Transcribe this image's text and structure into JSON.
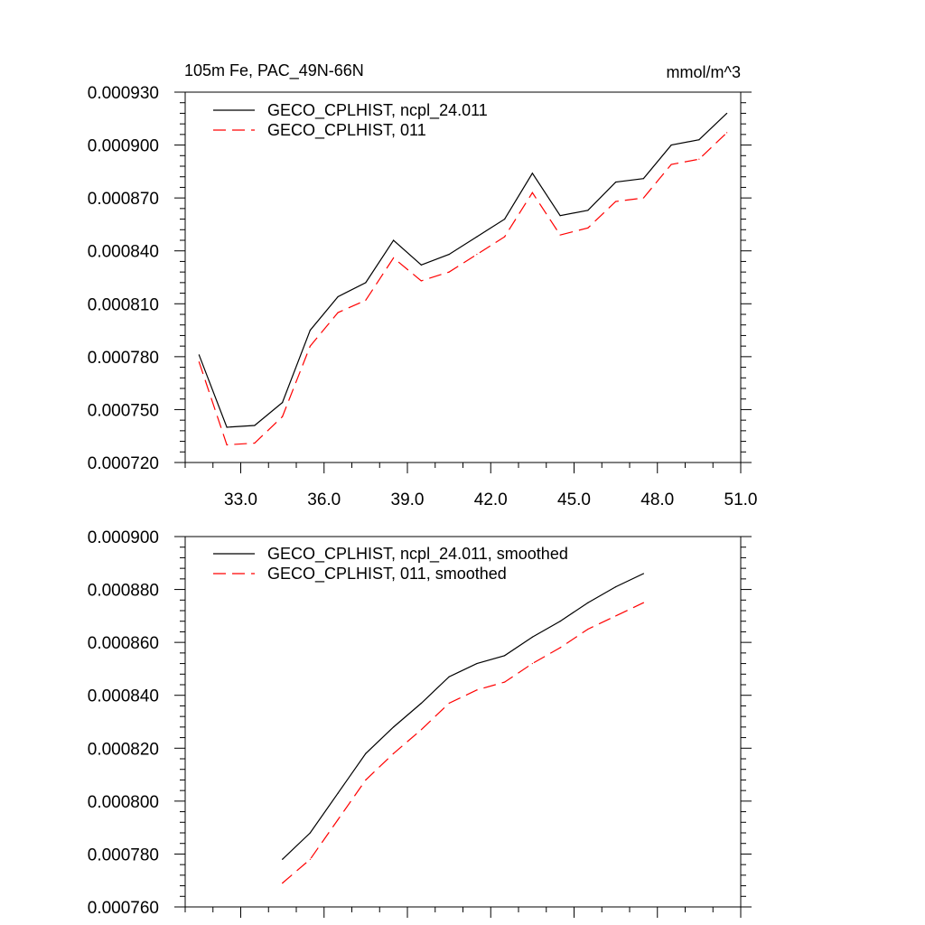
{
  "chart_data": [
    {
      "type": "line",
      "title_left": "105m Fe, PAC_49N-66N",
      "title_right": "mmol/m^3",
      "xlim": [
        31.0,
        51.0
      ],
      "ylim": [
        0.00072,
        0.00093
      ],
      "xticks": [
        33.0,
        36.0,
        39.0,
        42.0,
        45.0,
        48.0,
        51.0
      ],
      "xtick_labels": [
        "33.0",
        "36.0",
        "39.0",
        "42.0",
        "45.0",
        "48.0",
        "51.0"
      ],
      "yticks": [
        0.00072,
        0.00075,
        0.00078,
        0.00081,
        0.00084,
        0.00087,
        0.0009,
        0.00093
      ],
      "ytick_labels": [
        "0.000720",
        "0.000750",
        "0.000780",
        "0.000810",
        "0.000840",
        "0.000870",
        "0.000900",
        "0.000930"
      ],
      "x": [
        31.5,
        32.5,
        33.5,
        34.5,
        35.5,
        36.5,
        37.5,
        38.5,
        39.5,
        40.5,
        41.5,
        42.5,
        43.5,
        44.5,
        45.5,
        46.5,
        47.5,
        48.5,
        49.5,
        50.5
      ],
      "series": [
        {
          "name": "GECO_CPLHIST, ncpl_24.011",
          "color": "#000000",
          "dash": "solid",
          "values": [
            0.000781,
            0.00074,
            0.000741,
            0.000754,
            0.000795,
            0.000814,
            0.000822,
            0.000846,
            0.000832,
            0.000838,
            0.000848,
            0.000858,
            0.000884,
            0.00086,
            0.000863,
            0.000879,
            0.000881,
            0.0009,
            0.000903,
            0.000918
          ]
        },
        {
          "name": "GECO_CPLHIST, 011",
          "color": "#ff0000",
          "dash": "dashed",
          "values": [
            0.000777,
            0.00073,
            0.000731,
            0.000746,
            0.000786,
            0.000805,
            0.000812,
            0.000836,
            0.000823,
            0.000828,
            0.000838,
            0.000848,
            0.000873,
            0.000849,
            0.000853,
            0.000868,
            0.00087,
            0.000889,
            0.000892,
            0.000907
          ]
        }
      ]
    },
    {
      "type": "line",
      "xlim": [
        31.0,
        51.0
      ],
      "ylim": [
        0.00076,
        0.0009
      ],
      "xticks": [
        33.0,
        36.0,
        39.0,
        42.0,
        45.0,
        48.0,
        51.0
      ],
      "yticks": [
        0.00076,
        0.00078,
        0.0008,
        0.00082,
        0.00084,
        0.00086,
        0.00088,
        0.0009
      ],
      "ytick_labels": [
        "0.000760",
        "0.000780",
        "0.000800",
        "0.000820",
        "0.000840",
        "0.000860",
        "0.000880",
        "0.000900"
      ],
      "x": [
        34.5,
        35.5,
        36.5,
        37.5,
        38.5,
        39.5,
        40.5,
        41.5,
        42.5,
        43.5,
        44.5,
        45.5,
        46.5,
        47.5
      ],
      "series": [
        {
          "name": "GECO_CPLHIST, ncpl_24.011, smoothed",
          "color": "#000000",
          "dash": "solid",
          "values": [
            0.000778,
            0.000788,
            0.000803,
            0.000818,
            0.000828,
            0.000837,
            0.000847,
            0.000852,
            0.000855,
            0.000862,
            0.000868,
            0.000875,
            0.000881,
            0.000886
          ]
        },
        {
          "name": "GECO_CPLHIST, 011, smoothed",
          "color": "#ff0000",
          "dash": "dashed",
          "values": [
            0.000769,
            0.000778,
            0.000793,
            0.000808,
            0.000818,
            0.000827,
            0.000837,
            0.000842,
            0.000845,
            0.000852,
            0.000858,
            0.000865,
            0.00087,
            0.000875
          ]
        }
      ]
    }
  ]
}
